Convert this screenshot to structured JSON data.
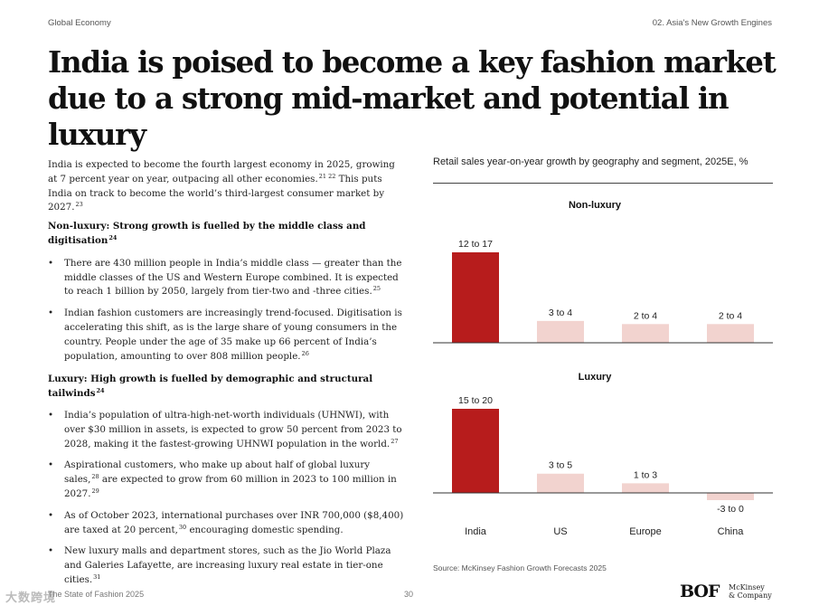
{
  "header": {
    "left": "Global Economy",
    "right": "02. Asia's New Growth Engines"
  },
  "title": "India is poised to become a key fashion market due to a strong mid-market and potential in luxury",
  "intro": {
    "text1": "India is expected to become the fourth largest economy in 2025, growing at 7 percent year on year, outpacing all other economies.",
    "ref1": "21 22",
    "text2": " This puts India on track to become the world’s third-largest consumer market by 2027.",
    "ref2": "23"
  },
  "section1": {
    "heading": "Non-luxury: Strong growth is fuelled by the middle class and digitisation",
    "ref": "24",
    "bullets": [
      {
        "text": "There are 430 million people in India’s middle class — greater than the middle classes of the US and Western Europe combined. It is expected to reach 1 billion by 2050, largely from tier-two and -three cities.",
        "ref": "25"
      },
      {
        "text": "Indian fashion customers are increasingly trend-focused. Digitisation is accelerating this shift, as is the large share of young consumers in the country. People under the age of 35 make up 66 percent of India’s population, amounting to over 808 million people.",
        "ref": "26"
      }
    ]
  },
  "section2": {
    "heading": "Luxury: High growth is fuelled by demographic and structural tailwinds",
    "ref": "24",
    "bullets": [
      {
        "a": "India’s population of ultra-high-net-worth individuals (UHNWI), with over $30 million in assets, is expected to grow 50 percent from 2023 to 2028, making it the fastest-growing UHNWI population in the world.",
        "ref_a": "27"
      },
      {
        "a": "Aspirational customers, who make up about half of global luxury sales,",
        "ref_a": "28",
        "b": " are expected to grow from 60 million in 2023 to 100 million in 2027.",
        "ref_b": "29"
      },
      {
        "a": "As of October 2023, international purchases over INR 700,000 ($8,400) are taxed at 20 percent,",
        "ref_a": "30",
        "b": " encouraging domestic spending."
      },
      {
        "a": "New luxury malls and department stores, such as the Jio World Plaza and Galeries Lafayette, are increasing luxury real estate in tier-one cities.",
        "ref_a": "31"
      }
    ]
  },
  "chart_data": {
    "type": "bar",
    "title": "Retail sales year-on-year growth by geography and segment, 2025E, %",
    "categories": [
      "India",
      "US",
      "Europe",
      "China"
    ],
    "colors": {
      "highlight": "#b71c1c",
      "other": "#f2d3cf",
      "axis": "#333333"
    },
    "panels": [
      {
        "name": "Non-luxury",
        "values": [
          14.5,
          3.5,
          3,
          3
        ],
        "labels": [
          "12 to 17",
          "3 to 4",
          "2 to 4",
          "2 to 4"
        ],
        "ylim": [
          0,
          15
        ]
      },
      {
        "name": "Luxury",
        "values": [
          17.5,
          4,
          2,
          -1.5
        ],
        "labels": [
          "15 to 20",
          "3 to 5",
          "1 to 3",
          "-3 to 0"
        ],
        "ylim": [
          -1.5,
          17.5
        ]
      }
    ]
  },
  "source": "Source: McKinsey Fashion Growth Forecasts 2025",
  "footer": {
    "left": "The State of Fashion 2025",
    "page": "30"
  },
  "logos": {
    "bof": "BOF",
    "mckinsey_line1": "McKinsey",
    "mckinsey_line2": "& Company"
  },
  "watermark": "大数跨境"
}
